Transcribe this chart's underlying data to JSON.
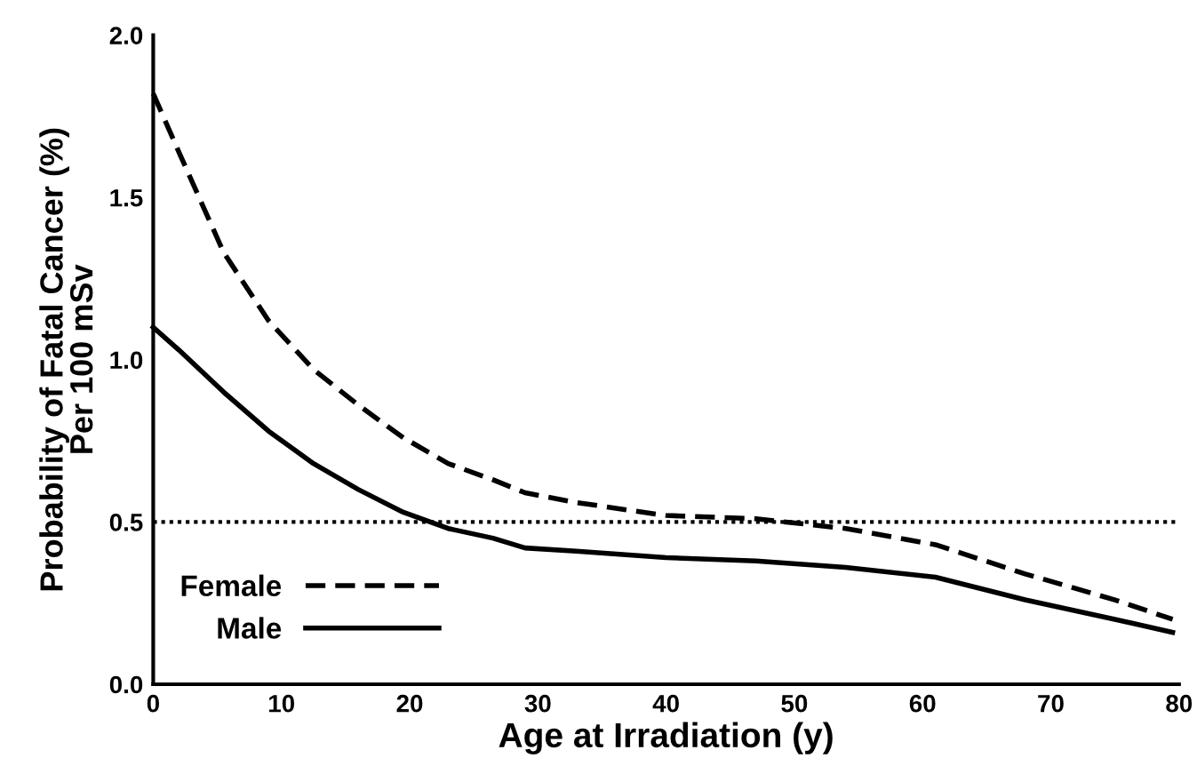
{
  "chart_data": {
    "type": "line",
    "xlabel": "Age at Irradiation (y)",
    "ylabel": "Probability of Fatal Cancer (%)\nPer 100 mSv",
    "xlim": [
      0,
      80
    ],
    "xticks": [
      0,
      10,
      20,
      30,
      40,
      50,
      60,
      70,
      80
    ],
    "ylim": [
      0,
      2
    ],
    "yticks": [
      {
        "value": 0,
        "label": "0.0"
      },
      0.5,
      {
        "value": 1,
        "label": "1.0"
      },
      1.5,
      {
        "value": 2,
        "label": "2.0"
      }
    ],
    "grid": false,
    "legend": "bottom left",
    "marker": "none",
    "ref_lines": [
      {
        "axis": "y",
        "value": 0.5,
        "label": null,
        "color": "#000000",
        "line_style": "dotted"
      }
    ],
    "series": [
      {
        "name": "Female",
        "color": "#000000",
        "line_style": "dashed",
        "x": [
          0,
          2,
          5.5,
          9,
          12.5,
          16,
          19.5,
          23,
          26.5,
          29,
          33,
          40,
          47,
          54,
          61,
          68,
          75,
          79.5
        ],
        "values": [
          1.82,
          1.64,
          1.33,
          1.12,
          0.97,
          0.86,
          0.76,
          0.68,
          0.63,
          0.59,
          0.56,
          0.52,
          0.51,
          0.48,
          0.43,
          0.34,
          0.26,
          0.2
        ]
      },
      {
        "name": "Male",
        "color": "#000000",
        "line_style": "solid",
        "x": [
          0,
          2,
          5.5,
          9,
          12.5,
          16,
          19.5,
          23,
          26.5,
          29,
          33,
          40,
          47,
          54,
          61,
          68,
          75,
          79.5
        ],
        "values": [
          1.1,
          1.03,
          0.9,
          0.78,
          0.68,
          0.6,
          0.53,
          0.48,
          0.45,
          0.42,
          0.41,
          0.39,
          0.38,
          0.36,
          0.33,
          0.26,
          0.2,
          0.16
        ]
      }
    ]
  }
}
